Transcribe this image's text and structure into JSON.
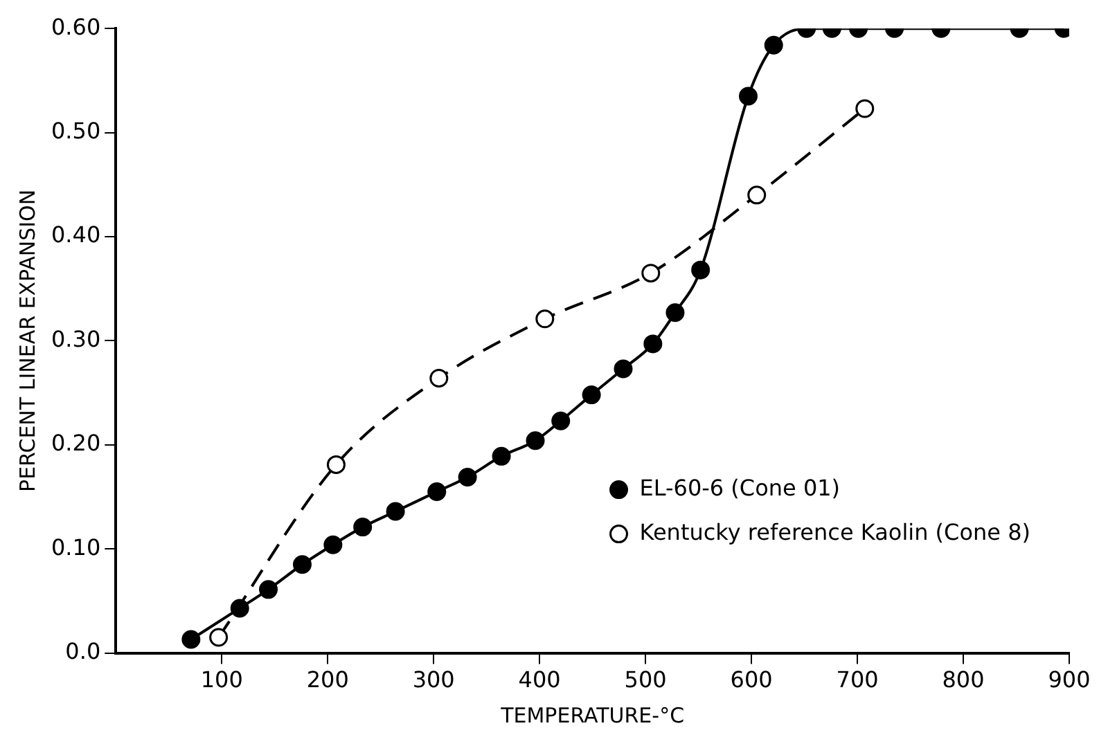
{
  "chart_data": {
    "type": "line",
    "xlabel": "TEMPERATURE-°C",
    "ylabel": "PERCENT LINEAR EXPANSION",
    "xlim": [
      0,
      900
    ],
    "xticks": [
      100,
      200,
      300,
      400,
      500,
      600,
      700,
      800,
      900
    ],
    "ylim": [
      0,
      0.6
    ],
    "yticks": [
      {
        "value": 0,
        "label": "0.0"
      },
      {
        "value": 0.1,
        "label": "0.10"
      },
      {
        "value": 0.2,
        "label": "0.20"
      },
      {
        "value": 0.3,
        "label": "0.30"
      },
      {
        "value": 0.4,
        "label": "0.40"
      },
      {
        "value": 0.5,
        "label": "0.50"
      },
      {
        "value": 0.6,
        "label": "0.60"
      }
    ],
    "grid": false,
    "legend": "bottom right",
    "marker": "circle",
    "series": [
      {
        "name": "EL-60-6 (Cone 01)",
        "color": "#000000",
        "line_style": "solid",
        "x": [
          71,
          117,
          144,
          176,
          205,
          233,
          264,
          303,
          332,
          364,
          396,
          420,
          449,
          479,
          507,
          528,
          552,
          597,
          621,
          652,
          676,
          701,
          735,
          779,
          853,
          895
        ],
        "values": [
          0.013,
          0.043,
          0.061,
          0.085,
          0.104,
          0.121,
          0.136,
          0.155,
          0.169,
          0.189,
          0.204,
          0.223,
          0.248,
          0.273,
          0.297,
          0.327,
          0.368,
          0.535,
          0.584,
          0.6,
          0.6,
          0.6,
          0.6,
          0.6,
          0.6,
          0.6
        ]
      },
      {
        "name": "Kentucky reference Kaolin (Cone 8)",
        "color": "#000000",
        "line_style": "dashed",
        "x": [
          97,
          208,
          305,
          405,
          505,
          605,
          707
        ],
        "values": [
          0.015,
          0.181,
          0.264,
          0.321,
          0.365,
          0.44,
          0.523
        ]
      }
    ]
  }
}
